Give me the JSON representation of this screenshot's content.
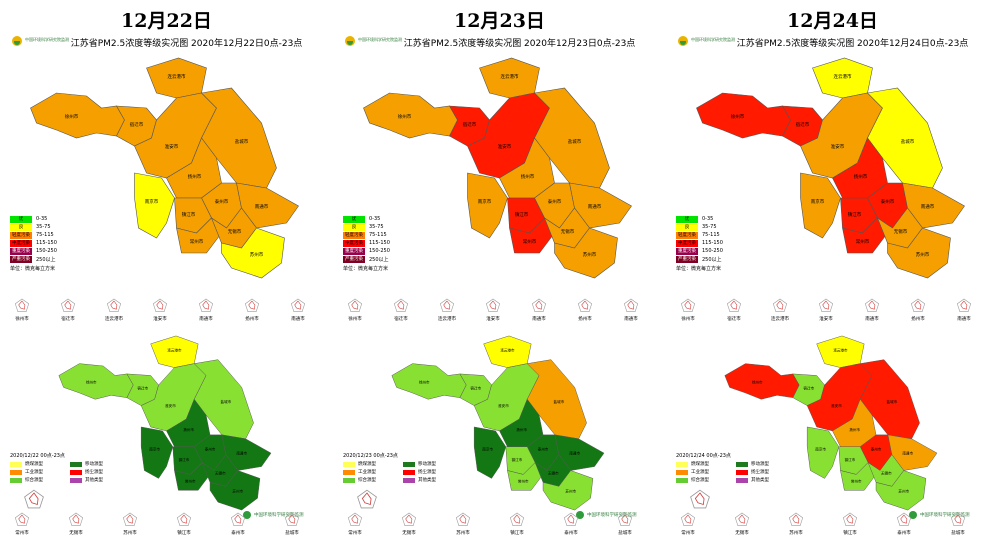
{
  "logo_text": "中国环境科学研究院监测",
  "org_text": "中国环境科学研究院监测",
  "unit_text": "单位：微克每立方米",
  "legend": [
    {
      "label": "优",
      "range": "0-35",
      "color": "#00e400"
    },
    {
      "label": "良",
      "range": "35-75",
      "color": "#ffff00"
    },
    {
      "label": "轻度污染",
      "range": "75-115",
      "color": "#ff7e00"
    },
    {
      "label": "中度污染",
      "range": "115-150",
      "color": "#ff0000"
    },
    {
      "label": "重度污染",
      "range": "150-250",
      "color": "#99004c"
    },
    {
      "label": "严重污染",
      "range": "250以上",
      "color": "#7e0023"
    }
  ],
  "type_legend": [
    {
      "label": "燃煤源型",
      "color": "#ffff55"
    },
    {
      "label": "移动源型",
      "color": "#1f7a1f"
    },
    {
      "label": "工业源型",
      "color": "#ff8c00"
    },
    {
      "label": "扬尘源型",
      "color": "#ff0000"
    },
    {
      "label": "综合源型",
      "color": "#66cc33"
    },
    {
      "label": "其他类型",
      "color": "#aa44aa"
    }
  ],
  "colors": {
    "yellow": "#ffff00",
    "orange": "#f5a000",
    "red": "#ff1a00",
    "dgreen": "#137813",
    "lgreen": "#88e033"
  },
  "top_radar_cities": [
    "徐州市",
    "宿迁市",
    "连云港市",
    "淮安市",
    "南通市",
    "扬州市",
    "南通市"
  ],
  "bottom_radar_cities": [
    "常州市",
    "无锡市",
    "苏州市",
    "镇江市",
    "泰州市",
    "盐城市"
  ],
  "panels": [
    {
      "date": "12月22日",
      "map_title": "江苏省PM2.5浓度等级实况图 2020年12月22日0点-23点",
      "type_date": "2020/12/22 00点-23点",
      "top_colors": {
        "xz": "orange",
        "sq": "orange",
        "lyg": "orange",
        "ha": "orange",
        "yc": "orange",
        "yz": "orange",
        "tz": "orange",
        "nt": "orange",
        "nj": "yellow",
        "zj": "orange",
        "cz": "orange",
        "wx": "orange",
        "szh": "yellow"
      },
      "bot_colors": {
        "xz": "lgreen",
        "sq": "lgreen",
        "lyg": "yellow",
        "ha": "lgreen",
        "yc": "lgreen",
        "yz": "dgreen",
        "tz": "dgreen",
        "nt": "dgreen",
        "nj": "dgreen",
        "zj": "dgreen",
        "cz": "dgreen",
        "wx": "dgreen",
        "szh": "dgreen"
      }
    },
    {
      "date": "12月23日",
      "map_title": "江苏省PM2.5浓度等级实况图 2020年12月23日0点-23点",
      "type_date": "2020/12/23 00点-23点",
      "top_colors": {
        "xz": "orange",
        "sq": "red",
        "lyg": "orange",
        "ha": "red",
        "yc": "orange",
        "yz": "orange",
        "tz": "orange",
        "nt": "orange",
        "nj": "orange",
        "zj": "red",
        "cz": "red",
        "wx": "orange",
        "szh": "orange"
      },
      "bot_colors": {
        "xz": "lgreen",
        "sq": "lgreen",
        "lyg": "yellow",
        "ha": "lgreen",
        "yc": "orange",
        "yz": "dgreen",
        "tz": "dgreen",
        "nt": "dgreen",
        "nj": "dgreen",
        "zj": "lgreen",
        "cz": "lgreen",
        "wx": "dgreen",
        "szh": "lgreen"
      }
    },
    {
      "date": "12月24日",
      "map_title": "江苏省PM2.5浓度等级实况图 2020年12月24日0点-23点",
      "type_date": "2020/12/24 00点-23点",
      "top_colors": {
        "xz": "red",
        "sq": "red",
        "lyg": "yellow",
        "ha": "orange",
        "yc": "yellow",
        "yz": "red",
        "tz": "red",
        "nt": "orange",
        "nj": "orange",
        "zj": "red",
        "cz": "red",
        "wx": "orange",
        "szh": "orange"
      },
      "bot_colors": {
        "xz": "red",
        "sq": "lgreen",
        "lyg": "yellow",
        "ha": "red",
        "yc": "red",
        "yz": "orange",
        "tz": "red",
        "nt": "orange",
        "nj": "lgreen",
        "zj": "lgreen",
        "cz": "lgreen",
        "wx": "lgreen",
        "szh": "lgreen"
      }
    }
  ],
  "city_labels": {
    "xz": "徐州市",
    "sq": "宿迁市",
    "lyg": "连云港市",
    "ha": "淮安市",
    "yc": "盐城市",
    "yz": "扬州市",
    "tz": "泰州市",
    "nt": "南通市",
    "nj": "南京市",
    "zj": "镇江市",
    "cz": "常州市",
    "wx": "无锡市",
    "szh": "苏州市"
  }
}
